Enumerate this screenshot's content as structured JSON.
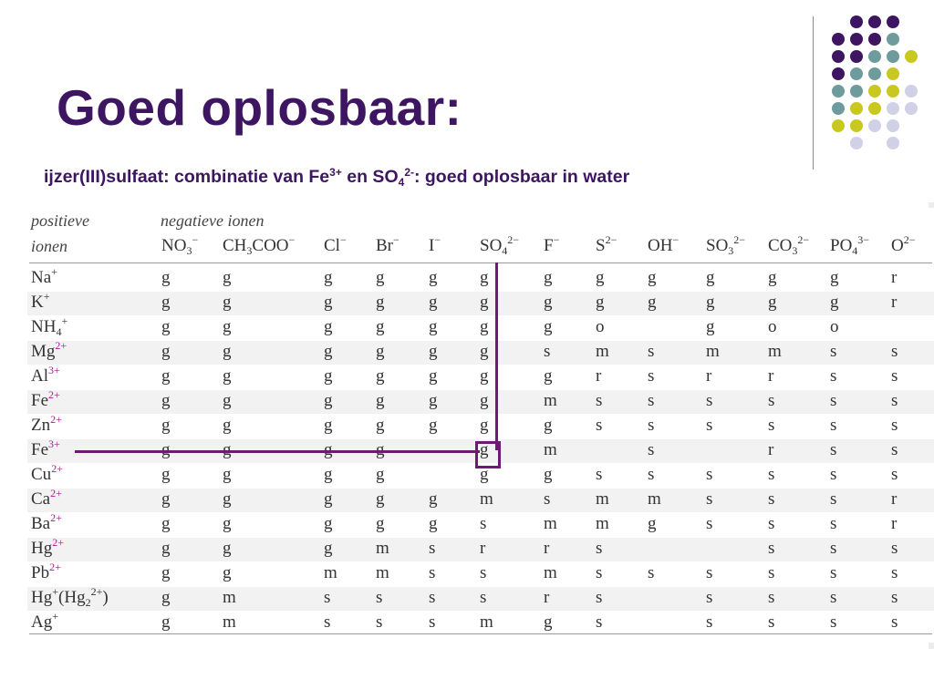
{
  "slide": {
    "title": "Goed oplosbaar:",
    "subtitle_parts": [
      "ijzer(III)sulfaat: combinatie van Fe",
      "3+",
      " en SO",
      "4",
      "2-",
      ": goed oplosbaar in water"
    ]
  },
  "colors": {
    "title": "#3d1560",
    "annotation": "#6d1a74",
    "dot_purple": "#3d1560",
    "dot_teal": "#6e9c9c",
    "dot_yellow": "#c8c820",
    "dot_lavender": "#d0d0e6"
  },
  "table": {
    "header_left_1": "positieve",
    "header_left_2": "ionen",
    "header_top": "negatieve ionen",
    "columns": [
      {
        "base": "NO",
        "sub": "3",
        "sup": "−"
      },
      {
        "base": "CH",
        "sub": "3",
        "base2": "COO",
        "sup": "−"
      },
      {
        "base": "Cl",
        "sup": "−"
      },
      {
        "base": "Br",
        "sup": "−"
      },
      {
        "base": "I",
        "sup": "−"
      },
      {
        "base": "SO",
        "sub": "4",
        "sup": "2−"
      },
      {
        "base": "F",
        "sup": "−"
      },
      {
        "base": "S",
        "sup": "2−"
      },
      {
        "base": "OH",
        "sup": "−"
      },
      {
        "base": "SO",
        "sub": "3",
        "sup": "2−"
      },
      {
        "base": "CO",
        "sub": "3",
        "sup": "2−"
      },
      {
        "base": "PO",
        "sub": "4",
        "sup": "3−"
      },
      {
        "base": "O",
        "sup": "2−"
      }
    ],
    "rows": [
      {
        "ion": "Na",
        "sup": "+",
        "values": [
          "g",
          "g",
          "g",
          "g",
          "g",
          "g",
          "g",
          "g",
          "g",
          "g",
          "g",
          "g",
          "r"
        ]
      },
      {
        "ion": "K",
        "sup": "+",
        "values": [
          "g",
          "g",
          "g",
          "g",
          "g",
          "g",
          "g",
          "g",
          "g",
          "g",
          "g",
          "g",
          "r"
        ]
      },
      {
        "ion": "NH",
        "sub": "4",
        "sup": "+",
        "values": [
          "g",
          "g",
          "g",
          "g",
          "g",
          "g",
          "g",
          "o",
          "",
          "g",
          "o",
          "o",
          ""
        ]
      },
      {
        "ion": "Mg",
        "sup": "2+",
        "values": [
          "g",
          "g",
          "g",
          "g",
          "g",
          "g",
          "s",
          "m",
          "s",
          "m",
          "m",
          "s",
          "s"
        ]
      },
      {
        "ion": "Al",
        "sup": "3+",
        "values": [
          "g",
          "g",
          "g",
          "g",
          "g",
          "g",
          "g",
          "r",
          "s",
          "r",
          "r",
          "s",
          "s"
        ]
      },
      {
        "ion": "Fe",
        "sup": "2+",
        "values": [
          "g",
          "g",
          "g",
          "g",
          "g",
          "g",
          "m",
          "s",
          "s",
          "s",
          "s",
          "s",
          "s"
        ]
      },
      {
        "ion": "Zn",
        "sup": "2+",
        "values": [
          "g",
          "g",
          "g",
          "g",
          "g",
          "g",
          "g",
          "s",
          "s",
          "s",
          "s",
          "s",
          "s"
        ]
      },
      {
        "ion": "Fe",
        "sup": "3+",
        "values": [
          "g",
          "g",
          "g",
          "g",
          "",
          "g",
          "m",
          "",
          "s",
          "",
          "r",
          "s",
          "s"
        ]
      },
      {
        "ion": "Cu",
        "sup": "2+",
        "values": [
          "g",
          "g",
          "g",
          "g",
          "",
          "g",
          "g",
          "s",
          "s",
          "s",
          "s",
          "s",
          "s"
        ]
      },
      {
        "ion": "Ca",
        "sup": "2+",
        "values": [
          "g",
          "g",
          "g",
          "g",
          "g",
          "m",
          "s",
          "m",
          "m",
          "s",
          "s",
          "s",
          "r"
        ]
      },
      {
        "ion": "Ba",
        "sup": "2+",
        "values": [
          "g",
          "g",
          "g",
          "g",
          "g",
          "s",
          "m",
          "m",
          "g",
          "s",
          "s",
          "s",
          "r"
        ]
      },
      {
        "ion": "Hg",
        "sup": "2+",
        "values": [
          "g",
          "g",
          "g",
          "m",
          "s",
          "r",
          "r",
          "s",
          "",
          "",
          "s",
          "s",
          "s"
        ]
      },
      {
        "ion": "Pb",
        "sup": "2+",
        "values": [
          "g",
          "g",
          "m",
          "m",
          "s",
          "s",
          "m",
          "s",
          "s",
          "s",
          "s",
          "s",
          "s"
        ]
      },
      {
        "ion": "Hg",
        "sup": "+",
        "extra": "(Hg",
        "extra_sub": "2",
        "extra_sup": "2+",
        "extra_end": ")",
        "values": [
          "g",
          "m",
          "s",
          "s",
          "s",
          "s",
          "r",
          "s",
          "",
          "s",
          "s",
          "s",
          "s"
        ]
      },
      {
        "ion": "Ag",
        "sup": "+",
        "values": [
          "g",
          "m",
          "s",
          "s",
          "s",
          "m",
          "g",
          "s",
          "",
          "s",
          "s",
          "s",
          "s"
        ]
      }
    ]
  }
}
